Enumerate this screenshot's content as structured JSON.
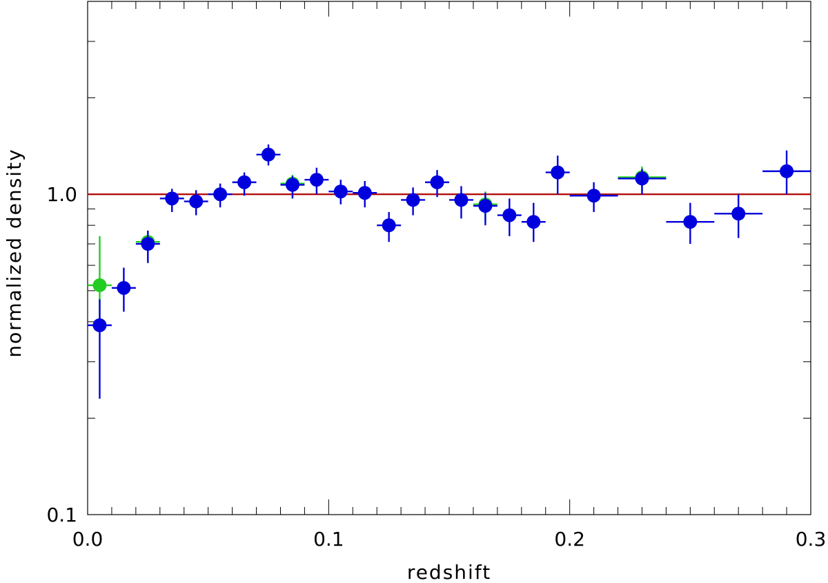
{
  "chart_data": {
    "type": "scatter",
    "title": "",
    "xlabel": "redshift",
    "ylabel": "normalized density",
    "xlim": [
      0.0,
      0.3
    ],
    "ylim": [
      0.1,
      4.0
    ],
    "y_scale": "log",
    "grid": false,
    "x_ticks": [
      {
        "value": 0.0,
        "label": "0.0"
      },
      {
        "value": 0.1,
        "label": "0.1"
      },
      {
        "value": 0.2,
        "label": "0.2"
      },
      {
        "value": 0.3,
        "label": "0.3"
      }
    ],
    "y_ticks": [
      {
        "value": 0.1,
        "label": "0.1"
      },
      {
        "value": 1.0,
        "label": "1.0"
      }
    ],
    "reference_line": {
      "y": 1.0,
      "color": "#b00000"
    },
    "series": [
      {
        "color": "#22cc22",
        "points": [
          {
            "x": 0.005,
            "y": 0.52,
            "xerr": 0.005,
            "ylo": 0.38,
            "yhi": 0.74
          },
          {
            "x": 0.025,
            "y": 0.71,
            "xerr": 0.005,
            "ylo": 0.62,
            "yhi": 0.77
          },
          {
            "x": 0.085,
            "y": 1.08,
            "xerr": 0.005,
            "ylo": 0.97,
            "yhi": 1.15
          },
          {
            "x": 0.165,
            "y": 0.93,
            "xerr": 0.005,
            "ylo": 0.82,
            "yhi": 1.02
          },
          {
            "x": 0.23,
            "y": 1.13,
            "xerr": 0.01,
            "ylo": 1.02,
            "yhi": 1.22
          }
        ]
      },
      {
        "color": "#0000dd",
        "points": [
          {
            "x": 0.005,
            "y": 0.39,
            "xerr": 0.005,
            "ylo": 0.23,
            "yhi": 0.47
          },
          {
            "x": 0.015,
            "y": 0.51,
            "xerr": 0.005,
            "ylo": 0.43,
            "yhi": 0.59
          },
          {
            "x": 0.025,
            "y": 0.7,
            "xerr": 0.005,
            "ylo": 0.61,
            "yhi": 0.77
          },
          {
            "x": 0.035,
            "y": 0.97,
            "xerr": 0.005,
            "ylo": 0.88,
            "yhi": 1.04
          },
          {
            "x": 0.045,
            "y": 0.95,
            "xerr": 0.005,
            "ylo": 0.86,
            "yhi": 1.03
          },
          {
            "x": 0.055,
            "y": 1.0,
            "xerr": 0.005,
            "ylo": 0.91,
            "yhi": 1.08
          },
          {
            "x": 0.065,
            "y": 1.09,
            "xerr": 0.005,
            "ylo": 0.99,
            "yhi": 1.17
          },
          {
            "x": 0.075,
            "y": 1.33,
            "xerr": 0.005,
            "ylo": 1.23,
            "yhi": 1.43
          },
          {
            "x": 0.085,
            "y": 1.07,
            "xerr": 0.005,
            "ylo": 0.97,
            "yhi": 1.14
          },
          {
            "x": 0.095,
            "y": 1.11,
            "xerr": 0.005,
            "ylo": 1.0,
            "yhi": 1.21
          },
          {
            "x": 0.105,
            "y": 1.02,
            "xerr": 0.005,
            "ylo": 0.93,
            "yhi": 1.11
          },
          {
            "x": 0.115,
            "y": 1.01,
            "xerr": 0.005,
            "ylo": 0.91,
            "yhi": 1.1
          },
          {
            "x": 0.125,
            "y": 0.8,
            "xerr": 0.005,
            "ylo": 0.71,
            "yhi": 0.88
          },
          {
            "x": 0.135,
            "y": 0.96,
            "xerr": 0.005,
            "ylo": 0.86,
            "yhi": 1.05
          },
          {
            "x": 0.145,
            "y": 1.09,
            "xerr": 0.005,
            "ylo": 0.98,
            "yhi": 1.19
          },
          {
            "x": 0.155,
            "y": 0.96,
            "xerr": 0.005,
            "ylo": 0.84,
            "yhi": 1.06
          },
          {
            "x": 0.165,
            "y": 0.92,
            "xerr": 0.005,
            "ylo": 0.8,
            "yhi": 1.01
          },
          {
            "x": 0.175,
            "y": 0.86,
            "xerr": 0.005,
            "ylo": 0.74,
            "yhi": 0.97
          },
          {
            "x": 0.185,
            "y": 0.82,
            "xerr": 0.005,
            "ylo": 0.71,
            "yhi": 0.94
          },
          {
            "x": 0.195,
            "y": 1.17,
            "xerr": 0.005,
            "ylo": 1.0,
            "yhi": 1.32
          },
          {
            "x": 0.21,
            "y": 0.99,
            "xerr": 0.01,
            "ylo": 0.88,
            "yhi": 1.09
          },
          {
            "x": 0.23,
            "y": 1.12,
            "xerr": 0.01,
            "ylo": 1.0,
            "yhi": 1.2
          },
          {
            "x": 0.25,
            "y": 0.82,
            "xerr": 0.01,
            "ylo": 0.7,
            "yhi": 0.94
          },
          {
            "x": 0.27,
            "y": 0.87,
            "xerr": 0.01,
            "ylo": 0.73,
            "yhi": 1.0
          },
          {
            "x": 0.29,
            "y": 1.18,
            "xerr": 0.01,
            "ylo": 1.0,
            "yhi": 1.37
          }
        ]
      }
    ]
  }
}
